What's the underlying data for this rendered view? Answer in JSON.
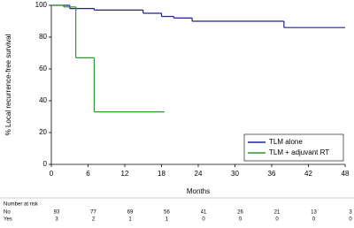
{
  "chart_data": {
    "type": "step",
    "ylabel": "% Local recurrence-free survival",
    "xlabel": "Months",
    "xlim": [
      0,
      48
    ],
    "xticks": [
      0,
      6,
      12,
      18,
      24,
      30,
      36,
      42,
      48
    ],
    "ylim": [
      0,
      100
    ],
    "yticks": [
      0,
      20,
      40,
      60,
      80,
      100
    ],
    "legend": "lower right",
    "series": [
      {
        "name": "TLM alone",
        "color": "#1f1f9c",
        "x": [
          0,
          3,
          7,
          15,
          18,
          20,
          23,
          38,
          48
        ],
        "values": [
          100,
          98,
          97,
          95,
          93,
          92,
          90,
          86,
          86
        ]
      },
      {
        "name": "TLM + adjuvant RT",
        "color": "#2a9a2a",
        "x": [
          0,
          2,
          4,
          7,
          18.5
        ],
        "values": [
          100,
          99,
          67,
          33,
          33
        ]
      }
    ],
    "risk_table": {
      "title": "Number at risk",
      "rows": [
        {
          "label": "No",
          "values": [
            93,
            77,
            69,
            56,
            41,
            26,
            21,
            13,
            3
          ]
        },
        {
          "label": "Yes",
          "values": [
            3,
            2,
            1,
            1,
            0,
            0,
            0,
            0,
            0
          ]
        }
      ]
    }
  }
}
